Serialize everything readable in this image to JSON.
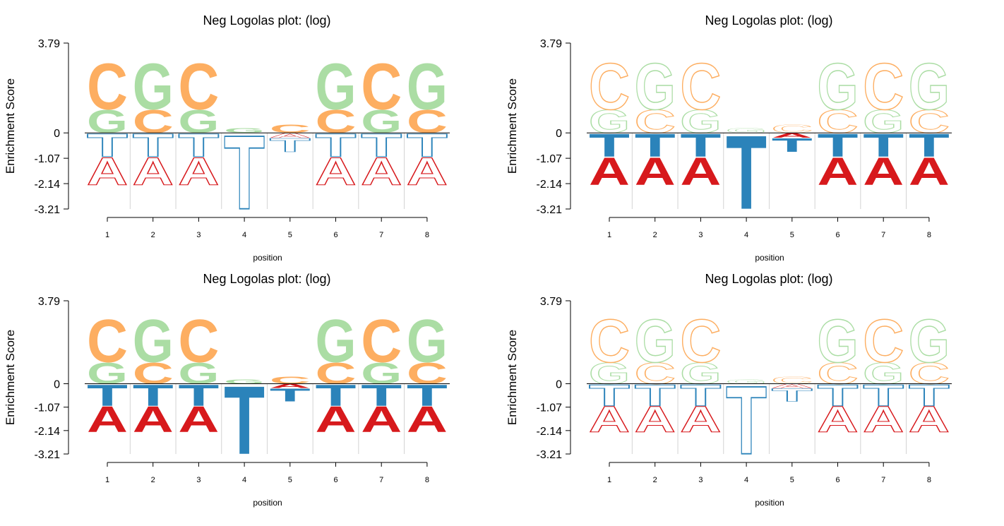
{
  "chart_data": [
    {
      "type": "logo",
      "title": "Neg Logolas plot: (log)",
      "x_label": "position",
      "y_label": "Enrichment Score",
      "categories": [
        "1",
        "2",
        "3",
        "4",
        "5",
        "6",
        "7",
        "8"
      ],
      "series": [
        {
          "name": "A",
          "color": "#d7191c",
          "values": [
            -1.2,
            -1.2,
            -1.2,
            0,
            -0.2,
            -1.2,
            -1.2,
            -1.2
          ]
        },
        {
          "name": "C",
          "color": "#fdae61",
          "values": [
            2.0,
            1.0,
            2.0,
            0,
            0.35,
            1.0,
            2.0,
            1.0
          ]
        },
        {
          "name": "G",
          "color": "#abdda4",
          "values": [
            1.0,
            2.0,
            1.0,
            0.2,
            0,
            2.0,
            1.0,
            2.0
          ]
        },
        {
          "name": "T",
          "color": "#2b83ba",
          "values": [
            -1.0,
            -1.0,
            -1.0,
            -3.2,
            -0.6,
            -1.0,
            -1.0,
            -1.0
          ]
        }
      ],
      "ylim": [
        -3.21,
        3.79
      ],
      "yticks": [
        3.79,
        0,
        -1.07,
        -2.14,
        -3.21
      ],
      "pos_style": "filled",
      "neg_style": "outline"
    },
    {
      "type": "logo",
      "title": "Neg Logolas plot: (log)",
      "x_label": "position",
      "y_label": "Enrichment Score",
      "categories": [
        "1",
        "2",
        "3",
        "4",
        "5",
        "6",
        "7",
        "8"
      ],
      "series": [
        {
          "name": "A",
          "color": "#d7191c",
          "values": [
            -1.2,
            -1.2,
            -1.2,
            0,
            -0.2,
            -1.2,
            -1.2,
            -1.2
          ]
        },
        {
          "name": "C",
          "color": "#fdae61",
          "values": [
            2.0,
            1.0,
            2.0,
            0,
            0.35,
            1.0,
            2.0,
            1.0
          ]
        },
        {
          "name": "G",
          "color": "#abdda4",
          "values": [
            1.0,
            2.0,
            1.0,
            0.2,
            0,
            2.0,
            1.0,
            2.0
          ]
        },
        {
          "name": "T",
          "color": "#2b83ba",
          "values": [
            -1.0,
            -1.0,
            -1.0,
            -3.2,
            -0.6,
            -1.0,
            -1.0,
            -1.0
          ]
        }
      ],
      "ylim": [
        -3.21,
        3.79
      ],
      "yticks": [
        3.79,
        0,
        -1.07,
        -2.14,
        -3.21
      ],
      "pos_style": "outline",
      "neg_style": "filled"
    },
    {
      "type": "logo",
      "title": "Neg Logolas plot: (log)",
      "x_label": "position",
      "y_label": "Enrichment Score",
      "categories": [
        "1",
        "2",
        "3",
        "4",
        "5",
        "6",
        "7",
        "8"
      ],
      "series": [
        {
          "name": "A",
          "color": "#d7191c",
          "values": [
            -1.2,
            -1.2,
            -1.2,
            0,
            -0.2,
            -1.2,
            -1.2,
            -1.2
          ]
        },
        {
          "name": "C",
          "color": "#fdae61",
          "values": [
            2.0,
            1.0,
            2.0,
            0,
            0.35,
            1.0,
            2.0,
            1.0
          ]
        },
        {
          "name": "G",
          "color": "#abdda4",
          "values": [
            1.0,
            2.0,
            1.0,
            0.2,
            0,
            2.0,
            1.0,
            2.0
          ]
        },
        {
          "name": "T",
          "color": "#2b83ba",
          "values": [
            -1.0,
            -1.0,
            -1.0,
            -3.2,
            -0.6,
            -1.0,
            -1.0,
            -1.0
          ]
        }
      ],
      "ylim": [
        -3.21,
        3.79
      ],
      "yticks": [
        3.79,
        0,
        -1.07,
        -2.14,
        -3.21
      ],
      "pos_style": "filled",
      "neg_style": "filled"
    },
    {
      "type": "logo",
      "title": "Neg Logolas plot: (log)",
      "x_label": "position",
      "y_label": "Enrichment Score",
      "categories": [
        "1",
        "2",
        "3",
        "4",
        "5",
        "6",
        "7",
        "8"
      ],
      "series": [
        {
          "name": "A",
          "color": "#d7191c",
          "values": [
            -1.2,
            -1.2,
            -1.2,
            0,
            -0.2,
            -1.2,
            -1.2,
            -1.2
          ]
        },
        {
          "name": "C",
          "color": "#fdae61",
          "values": [
            2.0,
            1.0,
            2.0,
            0,
            0.35,
            1.0,
            2.0,
            1.0
          ]
        },
        {
          "name": "G",
          "color": "#abdda4",
          "values": [
            1.0,
            2.0,
            1.0,
            0.2,
            0,
            2.0,
            1.0,
            2.0
          ]
        },
        {
          "name": "T",
          "color": "#2b83ba",
          "values": [
            -1.0,
            -1.0,
            -1.0,
            -3.2,
            -0.6,
            -1.0,
            -1.0,
            -1.0
          ]
        }
      ],
      "ylim": [
        -3.21,
        3.79
      ],
      "yticks": [
        3.79,
        0,
        -1.07,
        -2.14,
        -3.21
      ],
      "pos_style": "outline",
      "neg_style": "outline"
    }
  ]
}
